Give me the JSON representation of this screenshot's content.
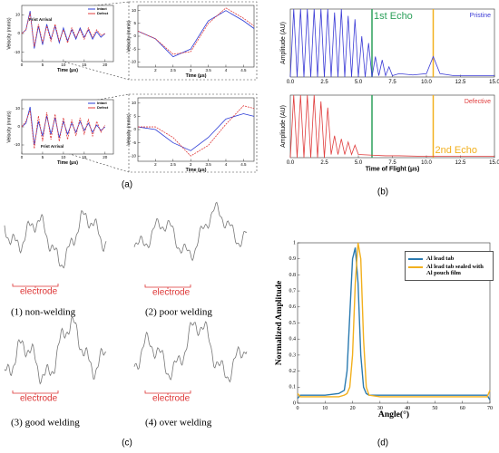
{
  "figure": {
    "panel_labels": [
      "(a)",
      "(b)",
      "(c)",
      "(d)"
    ],
    "panel_c": [
      {
        "label": "electrode",
        "caption": "(1) non-welding"
      },
      {
        "label": "electrode",
        "caption": "(2) poor welding"
      },
      {
        "label": "electrode",
        "caption": "(3) good welding"
      },
      {
        "label": "electrode",
        "caption": "(4) over welding"
      }
    ]
  },
  "chart_data": [
    {
      "type": "line",
      "x_label": "Time (μs)",
      "y_label": "Velocity (mm/s)",
      "annotations": [
        "Frist Arrival"
      ],
      "legend": "upper right",
      "x": [
        0,
        1,
        2,
        3,
        4,
        5,
        6,
        7,
        8,
        9,
        10,
        11,
        12,
        13,
        14,
        15,
        16,
        17,
        18,
        19,
        20
      ],
      "xlim": [
        0,
        22
      ],
      "xticks": [
        0,
        5,
        10,
        15,
        20
      ],
      "ylim": [
        -15,
        15
      ],
      "yticks": [
        -10,
        0,
        10
      ],
      "series": [
        {
          "name": "Intact",
          "color": "#2b3bd6",
          "values": [
            0,
            2,
            12,
            -8,
            4,
            -6,
            5,
            -3,
            4,
            -5,
            3,
            -4,
            2,
            -3,
            3,
            -2,
            2,
            -3,
            1,
            -2,
            0
          ]
        },
        {
          "name": "Defect",
          "color": "#e03c3c",
          "values": [
            0,
            2,
            11,
            -7,
            5,
            -5,
            4,
            -4,
            5,
            -4,
            2,
            -5,
            3,
            -2,
            2,
            -3,
            3,
            -2,
            2,
            -1,
            0
          ]
        }
      ]
    },
    {
      "type": "line",
      "x_label": "Time (μs)",
      "y_label": "Velocity (mm/s)",
      "x": [
        1.5,
        2,
        2.5,
        3,
        3.5,
        4,
        4.5,
        4.8
      ],
      "xlim": [
        1.5,
        4.8
      ],
      "xticks": [
        2,
        2.5,
        3,
        3.5,
        4,
        4.5
      ],
      "ylim": [
        -12,
        12
      ],
      "yticks": [
        -10,
        -5,
        0,
        5,
        10
      ],
      "series": [
        {
          "name": "Intact",
          "color": "#2b3bd6",
          "values": [
            2,
            -1,
            -8,
            -5,
            6,
            10,
            6,
            3
          ]
        },
        {
          "name": "Defect",
          "color": "#e03c3c",
          "values": [
            2,
            -1,
            -7,
            -6,
            5,
            11,
            7,
            4
          ]
        }
      ]
    },
    {
      "type": "line",
      "x_label": "Time (μs)",
      "y_label": "Velocity (mm/s)",
      "annotations": [
        "Frist Arrival"
      ],
      "legend": "upper right",
      "x": [
        0,
        1,
        2,
        3,
        4,
        5,
        6,
        7,
        8,
        9,
        10,
        11,
        12,
        13,
        14,
        15,
        16,
        17,
        18,
        19,
        20
      ],
      "xlim": [
        0,
        22
      ],
      "xticks": [
        0,
        5,
        10,
        15,
        20
      ],
      "ylim": [
        -15,
        15
      ],
      "yticks": [
        -10,
        0,
        10
      ],
      "series": [
        {
          "name": "Intact",
          "color": "#2b3bd6",
          "values": [
            0,
            2,
            11,
            -10,
            3,
            -5,
            6,
            -4,
            5,
            -6,
            3,
            -4,
            2,
            -3,
            3,
            -2,
            2,
            -3,
            1,
            -2,
            0
          ]
        },
        {
          "name": "Defect",
          "color": "#e03c3c",
          "values": [
            0,
            3,
            9,
            -12,
            6,
            -8,
            8,
            -7,
            7,
            -8,
            5,
            -7,
            4,
            -5,
            5,
            -4,
            4,
            -5,
            3,
            -3,
            1
          ]
        }
      ]
    },
    {
      "type": "line",
      "x_label": "Time (μs)",
      "y_label": "Velocity (mm/s)",
      "x": [
        1.5,
        2,
        2.5,
        3,
        3.5,
        4,
        4.5,
        4.8
      ],
      "xlim": [
        1.5,
        4.8
      ],
      "xticks": [
        2,
        2.5,
        3,
        3.5,
        4,
        4.5
      ],
      "ylim": [
        -12,
        12
      ],
      "yticks": [
        -10,
        -5,
        0,
        5,
        10
      ],
      "series": [
        {
          "name": "Intact",
          "color": "#2b3bd6",
          "values": [
            1,
            0,
            -5,
            -8,
            -3,
            4,
            6,
            5
          ]
        },
        {
          "name": "Defect",
          "color": "#e03c3c",
          "values": [
            1,
            1,
            -3,
            -10,
            -6,
            2,
            9,
            8
          ]
        }
      ]
    },
    {
      "type": "line",
      "y_label": "Amplitude (AU)",
      "legend": "upper right",
      "x": [
        0,
        0.25,
        0.5,
        0.75,
        1,
        1.25,
        1.5,
        1.75,
        2,
        2.25,
        2.5,
        2.75,
        3,
        3.25,
        3.5,
        3.75,
        4,
        4.25,
        4.5,
        4.75,
        5,
        5.25,
        5.5,
        5.75,
        6,
        6.25,
        6.5,
        6.75,
        7,
        7.25,
        7.5,
        8,
        9,
        10,
        10.5,
        11,
        12,
        13,
        14,
        15
      ],
      "xlim": [
        0,
        15
      ],
      "xticks": [
        {
          "value": 0,
          "label": "0.0"
        },
        2.5,
        {
          "value": 5,
          "label": "5.0"
        },
        7.5,
        {
          "value": 10,
          "label": "10.0"
        },
        12.5,
        {
          "value": 15,
          "label": "15.0"
        }
      ],
      "ylim": [
        0,
        1
      ],
      "vlines": [
        {
          "x": 6,
          "color": "#2ca05a",
          "label": "1st Echo"
        },
        {
          "x": 10.5,
          "color": "#f2b01e"
        }
      ],
      "series": [
        {
          "name": "Pristine",
          "color": "#3b3bd6",
          "values": [
            0,
            1,
            0,
            1,
            0,
            1,
            0,
            1,
            0,
            1,
            0,
            1,
            0,
            0.95,
            0,
            1,
            0,
            0.9,
            0,
            0.85,
            0,
            0.6,
            0,
            0.5,
            0,
            0.3,
            0.02,
            0.25,
            0.02,
            0.15,
            0.02,
            0.05,
            0.03,
            0.05,
            0.3,
            0.05,
            0.02,
            0.02,
            0.02,
            0.02
          ]
        }
      ]
    },
    {
      "type": "line",
      "x_label": "Time of Flight (μs)",
      "y_label": "Amplitude (AU)",
      "legend": "upper right",
      "x": [
        0,
        0.25,
        0.5,
        0.75,
        1,
        1.25,
        1.5,
        1.75,
        2,
        2.25,
        2.5,
        2.75,
        3,
        3.25,
        3.5,
        3.75,
        4,
        4.25,
        4.5,
        4.75,
        5,
        6,
        7,
        8,
        10,
        12,
        15
      ],
      "xlim": [
        0,
        15
      ],
      "xticks": [
        {
          "value": 0,
          "label": "0.0"
        },
        2.5,
        {
          "value": 5,
          "label": "5.0"
        },
        7.5,
        {
          "value": 10,
          "label": "10.0"
        },
        12.5,
        {
          "value": 15,
          "label": "15.0"
        }
      ],
      "ylim": [
        0,
        1
      ],
      "vlines": [
        {
          "x": 6,
          "color": "#2ca05a"
        },
        {
          "x": 10.5,
          "color": "#f2b01e",
          "label": "2nd Echo"
        }
      ],
      "series": [
        {
          "name": "Defective",
          "color": "#e03c3c",
          "values": [
            0,
            1,
            0,
            1,
            0,
            1,
            0,
            1,
            0,
            0.9,
            0,
            0.8,
            0.05,
            0.35,
            0.05,
            0.3,
            0.05,
            0.25,
            0.05,
            0.2,
            0.05,
            0.04,
            0.03,
            0.03,
            0.02,
            0.02,
            0.02
          ]
        }
      ]
    },
    {
      "type": "line",
      "x_label": "Angle(°)",
      "y_label": "Normalized Amplitude",
      "legend": "upper right",
      "x": [
        0,
        1,
        5,
        10,
        15,
        17,
        18,
        19,
        20,
        21,
        22,
        23,
        24,
        25,
        26,
        30,
        40,
        50,
        60,
        69,
        70
      ],
      "xlim": [
        0,
        70
      ],
      "xticks": [
        0,
        10,
        20,
        30,
        40,
        50,
        60,
        70
      ],
      "ylim": [
        0,
        1
      ],
      "yticks": [
        0,
        0.1,
        0.2,
        0.3,
        0.4,
        0.5,
        0.6,
        0.7,
        0.8,
        0.9,
        1
      ],
      "series": [
        {
          "name": "Al lead tab",
          "color": "#2a7ab0",
          "values": [
            0.03,
            0.05,
            0.05,
            0.05,
            0.06,
            0.08,
            0.2,
            0.55,
            0.9,
            0.97,
            0.75,
            0.3,
            0.1,
            0.06,
            0.05,
            0.05,
            0.05,
            0.05,
            0.05,
            0.05,
            0.02
          ]
        },
        {
          "name": "Al lead tab sealed with Al pouch film",
          "color": "#f2b01e",
          "values": [
            0.06,
            0.04,
            0.04,
            0.04,
            0.04,
            0.05,
            0.06,
            0.1,
            0.3,
            0.75,
            1,
            0.9,
            0.4,
            0.1,
            0.05,
            0.04,
            0.04,
            0.04,
            0.04,
            0.04,
            0.08
          ]
        }
      ]
    }
  ]
}
